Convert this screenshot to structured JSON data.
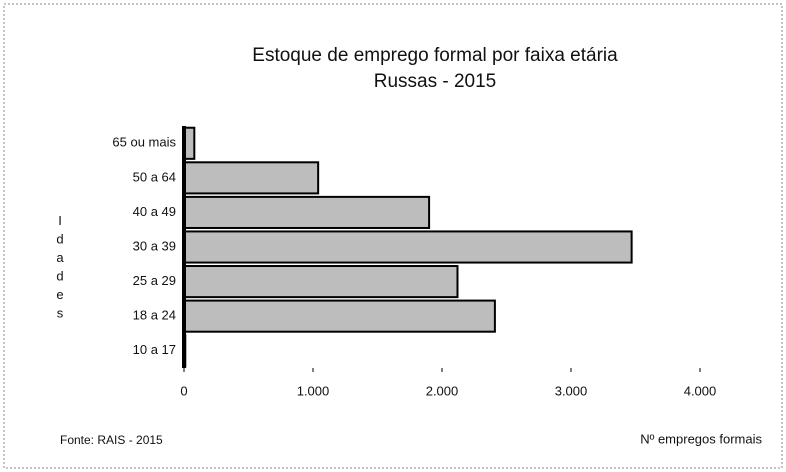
{
  "chart_data": {
    "type": "hbar",
    "title": "Estoque de emprego formal por faixa etária",
    "subtitle": "Russas - 2015",
    "y_label": "Idades",
    "x_label": "Nº empregos formais",
    "source": "Fonte: RAIS - 2015",
    "categories": [
      "65 ou mais",
      "50 a 64",
      "40 a 49",
      "30 a 39",
      "25 a 29",
      "18 a 24",
      "10 a 17"
    ],
    "values": [
      80,
      1040,
      1900,
      3470,
      2120,
      2410,
      10
    ],
    "color": "#bdbdbd",
    "xlim": [
      0,
      4000
    ],
    "xticks": [
      0,
      {
        "value": 1000,
        "label": "1.000"
      },
      {
        "value": 2000,
        "label": "2.000"
      },
      {
        "value": 3000,
        "label": "3.000"
      },
      {
        "value": 4000,
        "label": "4.000"
      }
    ],
    "grid": false
  }
}
